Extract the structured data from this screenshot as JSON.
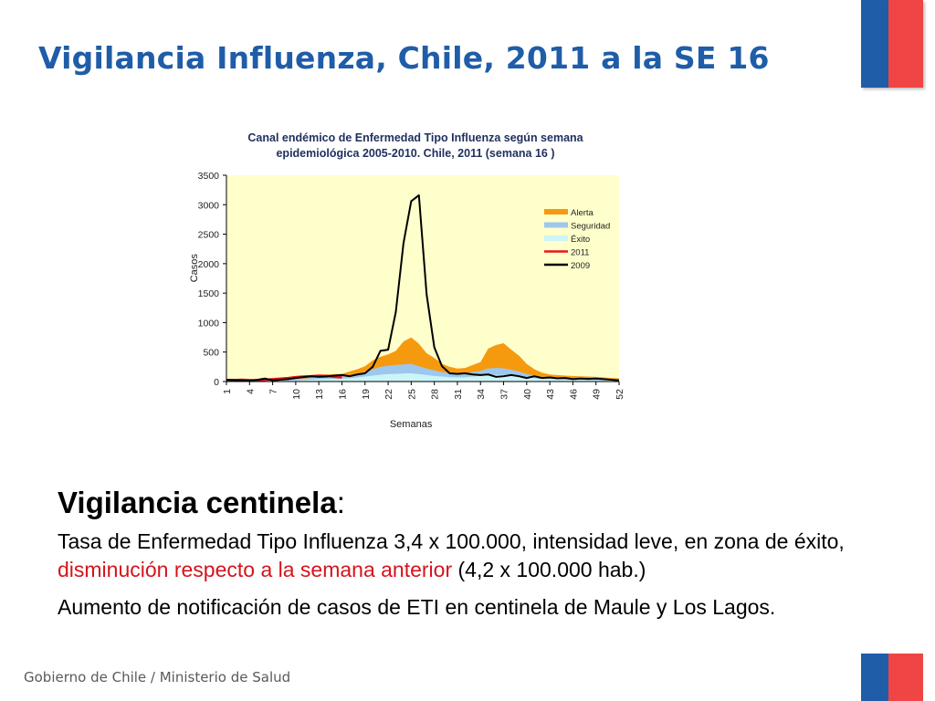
{
  "slide": {
    "title": "Vigilancia Influenza, Chile, 2011 a la SE 16",
    "heading_bold": "Vigilancia centinela",
    "heading_colon": ":",
    "para1_before": "Tasa de Enfermedad Tipo Influenza 3,4 x 100.000, intensidad leve, en zona de éxito, ",
    "para1_red": "disminución respecto a la semana anterior",
    "para1_after": " (4,2 x 100.000 hab.)",
    "para2": "Aumento de notificación de casos de ETI en centinela de Maule y Los Lagos.",
    "footer": "Gobierno de Chile / Ministerio de Salud"
  },
  "colors": {
    "title": "#1f5da8",
    "flag_blue": "#1f5da8",
    "flag_red": "#ef4545",
    "plot_bg": "#ffffcc",
    "alerta": "#f59a0f",
    "seguridad": "#9ec7ee",
    "exito": "#ccf5f7",
    "y2011": "#e8141c",
    "y2009": "#000000",
    "highlight_text": "#d4141c"
  },
  "chart_data": {
    "type": "area",
    "title_line1": "Canal  endémico de Enfermedad Tipo Influenza según semana",
    "title_line2": "epidemiológica 2005-2010.  Chile, 2011 (semana 16 )",
    "xlabel": "Semanas",
    "ylabel": "Casos",
    "ylim": [
      0,
      3500
    ],
    "yticks": [
      0,
      500,
      1000,
      1500,
      2000,
      2500,
      3000,
      3500
    ],
    "xlim": [
      1,
      52
    ],
    "xticks": [
      1,
      4,
      7,
      10,
      13,
      16,
      19,
      22,
      25,
      28,
      31,
      34,
      37,
      40,
      43,
      46,
      49,
      52
    ],
    "legend_position": "top-right",
    "series": [
      {
        "name": "Alerta",
        "kind": "area",
        "values": [
          40,
          40,
          35,
          30,
          35,
          40,
          45,
          50,
          60,
          70,
          85,
          100,
          115,
          120,
          125,
          130,
          170,
          210,
          260,
          360,
          420,
          460,
          520,
          680,
          750,
          640,
          480,
          400,
          300,
          250,
          220,
          230,
          280,
          330,
          560,
          620,
          650,
          540,
          440,
          300,
          210,
          150,
          120,
          110,
          100,
          95,
          90,
          85,
          80,
          70,
          60,
          55
        ]
      },
      {
        "name": "Seguridad",
        "kind": "area",
        "values": [
          25,
          25,
          22,
          20,
          22,
          25,
          28,
          30,
          35,
          40,
          50,
          60,
          70,
          75,
          80,
          85,
          100,
          130,
          160,
          210,
          250,
          270,
          280,
          290,
          300,
          260,
          220,
          190,
          160,
          140,
          130,
          135,
          160,
          180,
          220,
          230,
          225,
          200,
          170,
          130,
          100,
          80,
          70,
          65,
          60,
          55,
          52,
          50,
          48,
          45,
          40,
          38
        ]
      },
      {
        "name": "Éxito",
        "kind": "area",
        "values": [
          15,
          15,
          14,
          12,
          14,
          15,
          17,
          18,
          20,
          22,
          28,
          32,
          38,
          42,
          45,
          48,
          55,
          70,
          85,
          100,
          115,
          125,
          130,
          135,
          140,
          125,
          110,
          95,
          85,
          75,
          70,
          72,
          85,
          95,
          110,
          115,
          112,
          100,
          85,
          70,
          55,
          45,
          40,
          38,
          35,
          32,
          30,
          28,
          27,
          25,
          22,
          20
        ]
      },
      {
        "name": "2011",
        "kind": "line",
        "values": [
          20,
          25,
          30,
          25,
          20,
          30,
          40,
          50,
          60,
          75,
          85,
          90,
          100,
          95,
          80,
          70
        ]
      },
      {
        "name": "2009",
        "kind": "line",
        "values": [
          30,
          25,
          20,
          15,
          30,
          50,
          20,
          30,
          40,
          60,
          75,
          90,
          80,
          85,
          100,
          110,
          90,
          120,
          140,
          250,
          520,
          540,
          1180,
          2350,
          3060,
          3160,
          1480,
          580,
          260,
          140,
          130,
          140,
          120,
          110,
          120,
          80,
          90,
          110,
          90,
          60,
          90,
          60,
          70,
          55,
          60,
          40,
          50,
          45,
          50,
          40,
          30,
          20
        ]
      }
    ]
  }
}
